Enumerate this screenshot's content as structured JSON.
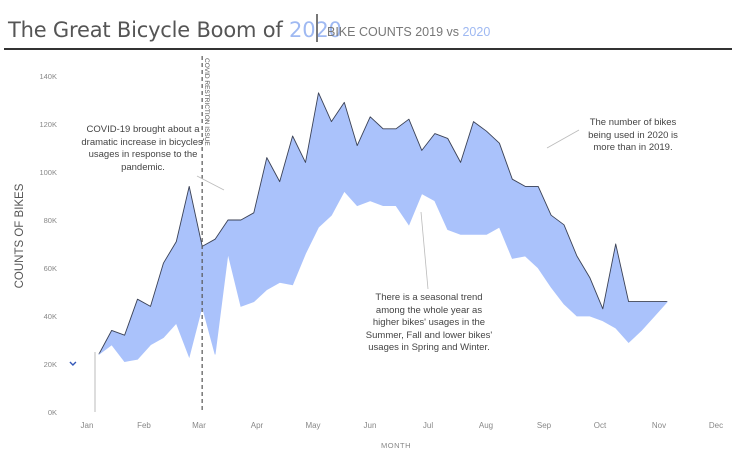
{
  "header": {
    "title_main": "The Great Bicycle Boom of ",
    "title_year": "2020",
    "subtitle_main": "BIKE COUNTS 2019 vs ",
    "subtitle_year": "2020"
  },
  "colors": {
    "accent": "#9fb9f2",
    "band_fill": "#aac2fb",
    "line_2020": "#3b4256",
    "gap_marker": "#3558b8",
    "covid_line": "#555555"
  },
  "annotations": {
    "covid": "COVID-19 brought about a dramatic increase in bicycles' usages in response to the pandemic.",
    "more": "The number of bikes being used in 2020 is more than in 2019.",
    "seasonal": "There is a seasonal trend among the whole year as higher bikes' usages in the Summer, Fall and lower bikes' usages in Spring and Winter."
  },
  "chart_data": {
    "type": "area",
    "ylabel": "COUNTS OF BIKES",
    "xlabel": "MONTH",
    "ylim": [
      0,
      140000
    ],
    "yticks": [
      0,
      20000,
      40000,
      60000,
      80000,
      100000,
      120000,
      140000
    ],
    "ytick_labels": [
      "0K",
      "20K",
      "40K",
      "60K",
      "80K",
      "100K",
      "120K",
      "140K"
    ],
    "month_ticks": [
      "Jan",
      "Feb",
      "Mar",
      "Apr",
      "May",
      "Jun",
      "Jul",
      "Aug",
      "Sep",
      "Oct",
      "Nov",
      "Dec"
    ],
    "x_unit": "week of year",
    "xlim": [
      1,
      53
    ],
    "reference_line": {
      "label": "COVID RESTRICTION ISSUE",
      "x": 12
    },
    "series": [
      {
        "name": "2020",
        "x": [
          4,
          5,
          6,
          7,
          8,
          9,
          10,
          11,
          12,
          13,
          14,
          15,
          16,
          17,
          18,
          19,
          20,
          21,
          22,
          23,
          24,
          25,
          26,
          27,
          28,
          29,
          30,
          31,
          32,
          33,
          34,
          35,
          36,
          37,
          38,
          39,
          40,
          41,
          42,
          43,
          44,
          45,
          46,
          47,
          48
        ],
        "values": [
          24000,
          34000,
          32000,
          47000,
          44000,
          62000,
          71000,
          94000,
          69000,
          72000,
          80000,
          80000,
          83000,
          106000,
          96000,
          115000,
          104000,
          133000,
          121000,
          129000,
          111000,
          123000,
          118000,
          118000,
          122000,
          109000,
          116000,
          114000,
          104000,
          121000,
          117000,
          112000,
          97000,
          94000,
          94000,
          82000,
          78000,
          65000,
          56000,
          43000,
          70000,
          46000,
          46000,
          46000,
          46000
        ]
      },
      {
        "name": "2019",
        "x": [
          4,
          5,
          6,
          7,
          8,
          9,
          10,
          11,
          12,
          13,
          14,
          15,
          16,
          17,
          18,
          19,
          20,
          21,
          22,
          23,
          24,
          25,
          26,
          27,
          28,
          29,
          30,
          31,
          32,
          33,
          34,
          35,
          36,
          37,
          38,
          39,
          40,
          41,
          42,
          43,
          44,
          45,
          46,
          47,
          48
        ],
        "values": [
          24000,
          28000,
          21000,
          22000,
          28000,
          31000,
          37000,
          23000,
          44000,
          24000,
          66000,
          44000,
          46000,
          51000,
          54000,
          53000,
          66000,
          77000,
          82000,
          92000,
          86000,
          88000,
          86000,
          86000,
          78000,
          91000,
          88000,
          76000,
          74000,
          74000,
          74000,
          77000,
          64000,
          65000,
          60000,
          52000,
          45000,
          40000,
          40000,
          38000,
          35000,
          29000,
          34000,
          40000,
          46000
        ]
      }
    ],
    "extra_points": [
      {
        "x": 2,
        "y": 20000
      }
    ]
  }
}
